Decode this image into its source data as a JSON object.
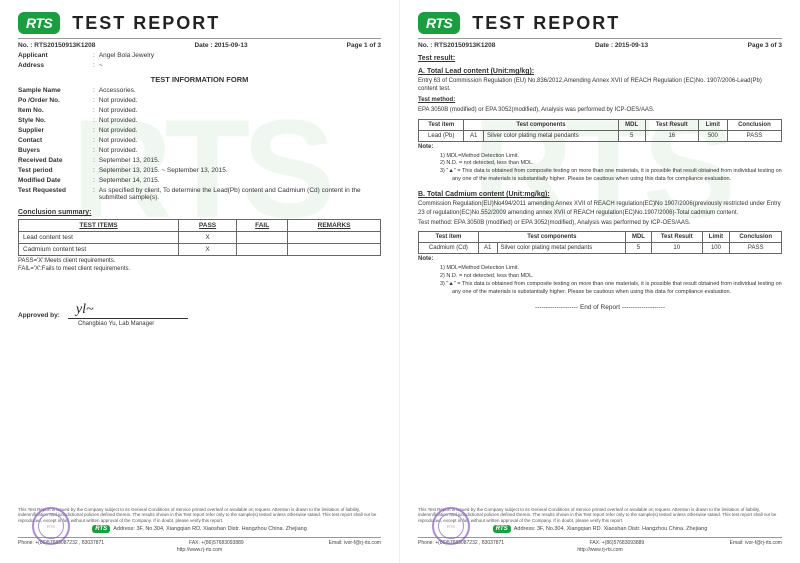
{
  "logo_text": "RTS",
  "title": "TEST REPORT",
  "report_no": "RTS20150913K1208",
  "date": "2015-09-13",
  "page1": {
    "page_label": "Page 1 of 3",
    "applicant_label": "Applicant",
    "applicant": "Angel Bola Jewelry",
    "address_label": "Address",
    "address": "~",
    "form_title": "TEST INFORMATION FORM",
    "fields": [
      {
        "label": "Sample Name",
        "value": "Accessories."
      },
      {
        "label": "Po /Order No.",
        "value": "Not provided."
      },
      {
        "label": "Item No.",
        "value": "Not provided."
      },
      {
        "label": "Style No.",
        "value": "Not provided."
      },
      {
        "label": "Supplier",
        "value": "Not provided."
      },
      {
        "label": "Contact",
        "value": "Not provided."
      },
      {
        "label": "Buyers",
        "value": "Not provided."
      },
      {
        "label": "Received Date",
        "value": "September 13, 2015."
      },
      {
        "label": "Test period",
        "value": "September 13, 2015. ~ September 13, 2015."
      },
      {
        "label": "Modified Date",
        "value": "September 14, 2015."
      },
      {
        "label": "Test Requested",
        "value": "As specified by client, To determine the Lead(Pb) content and Cadmium (Cd) content in the submitted sample(s)."
      }
    ],
    "conclusion_title": "Conclusion summary:",
    "conc_cols": [
      "TEST ITEMS",
      "PASS",
      "FAIL",
      "REMARKS"
    ],
    "conc_rows": [
      {
        "item": "Lead content test",
        "pass": "X",
        "fail": "",
        "remarks": ""
      },
      {
        "item": "Cadmium content test",
        "pass": "X",
        "fail": "",
        "remarks": ""
      }
    ],
    "pass_note": "PASS='X':Meets client requirements.",
    "fail_note": "FAIL='X':Fails to meet client requirements.",
    "approved_label": "Approved by:",
    "signer": "Changbiao Yu,   Lab Manager"
  },
  "page3": {
    "page_label": "Page 3 of 3",
    "result_title": "Test result:",
    "sectionA_title": "A. Total Lead content (Unit:mg/kg):",
    "sectionA_text": "Entry 63 of Commission Regulation (EU) No.836/2012,Amending Annex XVII of REACH Regulation (EC)No. 1907/2006-Lead(Pb) content test.",
    "method_label": "Test method:",
    "sectionA_method": "EPA 3050B (modified) or EPA 3052(modified), Analysis was performed by ICP-OES/AAS.",
    "res_cols": [
      "Test item",
      "",
      "Test components",
      "MDL",
      "Test Result",
      "Limit",
      "Conclusion"
    ],
    "sectionA_row": {
      "item": "Lead (Pb)",
      "code": "A1",
      "comp": "Silver color plating metal pendants",
      "mdl": "5",
      "result": "16",
      "limit": "500",
      "concl": "PASS"
    },
    "note_label": "Note:",
    "notes": [
      "1)   MDL=Method Detection Limit.",
      "2)   N.D. = not detected, less than MDL.",
      "3)   \"▲\" = This data is obtained from composite testing on more than one materials, it is possible that result obtained from individual testing on any one of the materials is substantially higher. Please be cautious when using this data for compliance evaluation."
    ],
    "sectionB_title": "B. Total Cadmium content (Unit:mg/kg):",
    "sectionB_text": "Commission Regulation(EU)No494/2011 amending Annex XVII of REACH regulation(EC)No 1907/2006(previously restricted under Entry 23 of regulation(EC)No.552/2009 amending annex XVII of REACH regulation(EC)No.1907/2006)-Total cadmium content.",
    "sectionB_method": "Test method: EPA 3050B (modified) or EPA 3052(modified), Analysis was performed by ICP-OES/AAS.",
    "sectionB_row": {
      "item": "Cadmium (Cd)",
      "code": "A1",
      "comp": "Silver color plating metal pendants",
      "mdl": "5",
      "result": "10",
      "limit": "100",
      "concl": "PASS"
    },
    "end_text": "-------------------- End of Report --------------------"
  },
  "footer": {
    "disclaimer": "This Test Report is issued by the Company subject to its General Conditions of Service printed overleaf or available on request. Attention is drawn to the limitation of liability, indemnification and jurisdictional policies defined therein. The results shown in this Test report refer only to the sample(s) tested unless otherwise stated. This test report shall not be reproduced, except in full, without written approval of the Company. If in doubt, please verify this report.",
    "co_line": "Address: 3F, No.304, Xiangqian RD. Xiaoshan Distr. Hangzhou China. Zhejiang",
    "phone_label": "Phone:",
    "phone": "+(86)57683087232 , 83037871",
    "fax_label": "FAX:",
    "fax": "+(86)57683093889",
    "email_label": "Email:",
    "email": "ivor-f@rj-rts.com",
    "url": "http://www.rj-rts.com"
  },
  "colors": {
    "brand_green": "#1a9e3f",
    "stamp_purple": "#8a5fbf",
    "watermark": "#f0f7f1"
  }
}
